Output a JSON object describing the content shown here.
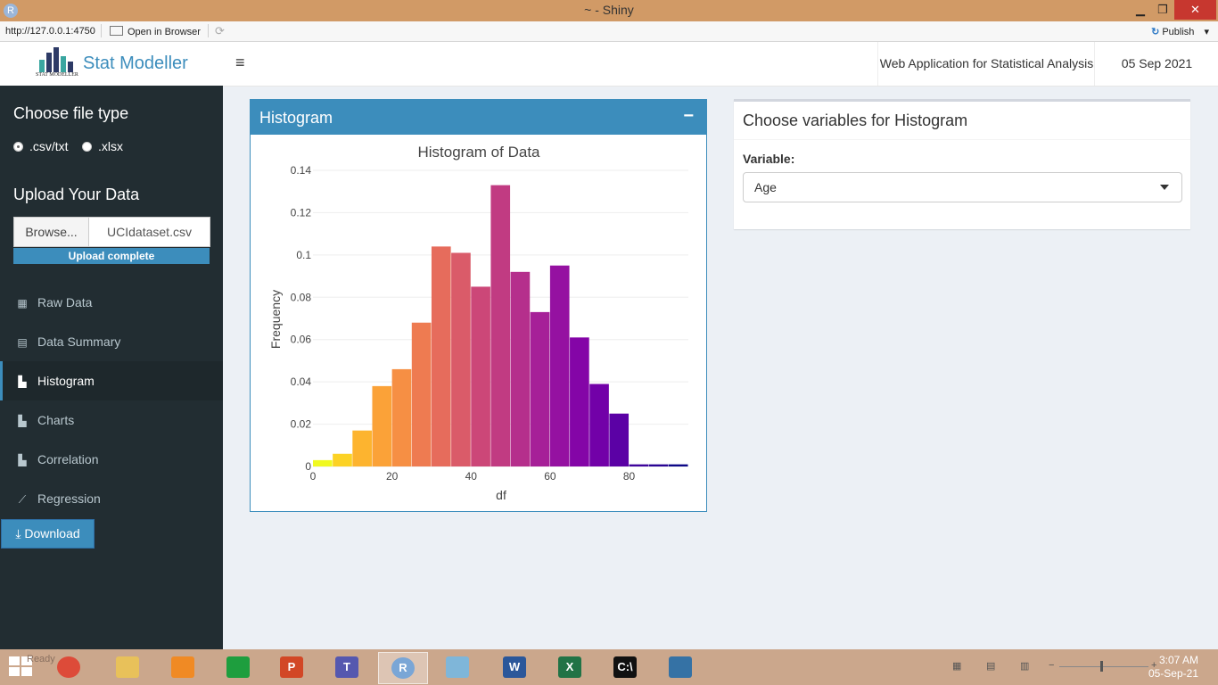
{
  "window": {
    "title": "~ - Shiny",
    "app_icon": "R",
    "minimize_icon": "▁",
    "restore_icon": "❐",
    "close_icon": "✕"
  },
  "addressbar": {
    "url": "http://127.0.0.1:4750",
    "open_in_browser": "Open in Browser",
    "publish": "Publish",
    "publish_dropdown": "▾"
  },
  "header": {
    "logo_text": "Stat Modeller",
    "logo_subtext": "STAT MODELLER",
    "menu_toggle": "≡",
    "tagline": "Web Application for Statistical Analysis",
    "date": "05 Sep 2021"
  },
  "sidebar": {
    "file_type_heading": "Choose file type",
    "file_types": [
      ".csv/txt",
      ".xlsx"
    ],
    "selected_file_type": ".csv/txt",
    "upload_heading": "Upload Your Data",
    "browse_label": "Browse...",
    "file_name": "UCIdataset.csv",
    "upload_status": "Upload complete",
    "menu": [
      {
        "label": "Raw Data",
        "icon": "table-icon"
      },
      {
        "label": "Data Summary",
        "icon": "calculator-icon"
      },
      {
        "label": "Histogram",
        "icon": "bar-chart-icon"
      },
      {
        "label": "Charts",
        "icon": "bar-chart-icon"
      },
      {
        "label": "Correlation",
        "icon": "bar-chart-icon"
      },
      {
        "label": "Regression",
        "icon": "line-chart-icon"
      }
    ],
    "active_item": "Histogram",
    "download_label": "Download"
  },
  "histogram_box": {
    "title": "Histogram",
    "collapse_symbol": "−"
  },
  "variable_box": {
    "title": "Choose variables for Histogram",
    "variable_label": "Variable:",
    "selected_variable": "Age"
  },
  "chart_data": {
    "type": "bar",
    "title": "Histogram of Data",
    "xlabel": "df",
    "ylabel": "Frequency",
    "xlim": [
      0,
      95
    ],
    "ylim": [
      0,
      0.14
    ],
    "xticks": [
      0,
      20,
      40,
      60,
      80
    ],
    "yticks": [
      0,
      0.02,
      0.04,
      0.06,
      0.08,
      0.1,
      0.12,
      0.14
    ],
    "ytick_labels": [
      "0",
      "0.02",
      "0.04",
      "0.06",
      "0.08",
      "0.1",
      "0.12",
      "0.14"
    ],
    "bin_width": 5,
    "bins": [
      0,
      5,
      10,
      15,
      20,
      25,
      30,
      35,
      40,
      45,
      50,
      55,
      60,
      65,
      70,
      75,
      80,
      85,
      90
    ],
    "values": [
      0.003,
      0.006,
      0.017,
      0.038,
      0.046,
      0.068,
      0.104,
      0.101,
      0.085,
      0.133,
      0.092,
      0.073,
      0.095,
      0.061,
      0.039,
      0.025,
      0.001,
      0.001,
      0.001
    ],
    "colors": [
      "#f0f921",
      "#fcd225",
      "#fdb42f",
      "#fba238",
      "#f68f44",
      "#ee7b51",
      "#e66c5c",
      "#da5b69",
      "#cc4778",
      "#c13b82",
      "#b52f8c",
      "#a62098",
      "#9511a1",
      "#8405a7",
      "#7201a8",
      "#5b01a5",
      "#3e049c",
      "#2a0594",
      "#0d0887"
    ],
    "grid": true
  },
  "taskbar": {
    "ready_text": "Ready",
    "apps": [
      {
        "name": "chrome-icon",
        "label": ""
      },
      {
        "name": "file-explorer-icon",
        "label": ""
      },
      {
        "name": "vlc-icon",
        "label": ""
      },
      {
        "name": "store-icon",
        "label": ""
      },
      {
        "name": "powerpoint-icon",
        "label": "P"
      },
      {
        "name": "teams-icon",
        "label": "T"
      },
      {
        "name": "r-icon",
        "label": "R"
      },
      {
        "name": "notes-icon",
        "label": ""
      },
      {
        "name": "word-icon",
        "label": "W"
      },
      {
        "name": "excel-icon",
        "label": "X"
      },
      {
        "name": "terminal-icon",
        "label": "C:\\"
      },
      {
        "name": "python-icon",
        "label": ""
      }
    ],
    "time": "3:07 AM",
    "date": "05-Sep-21",
    "zoom_minus": "−",
    "zoom_plus": "+"
  }
}
